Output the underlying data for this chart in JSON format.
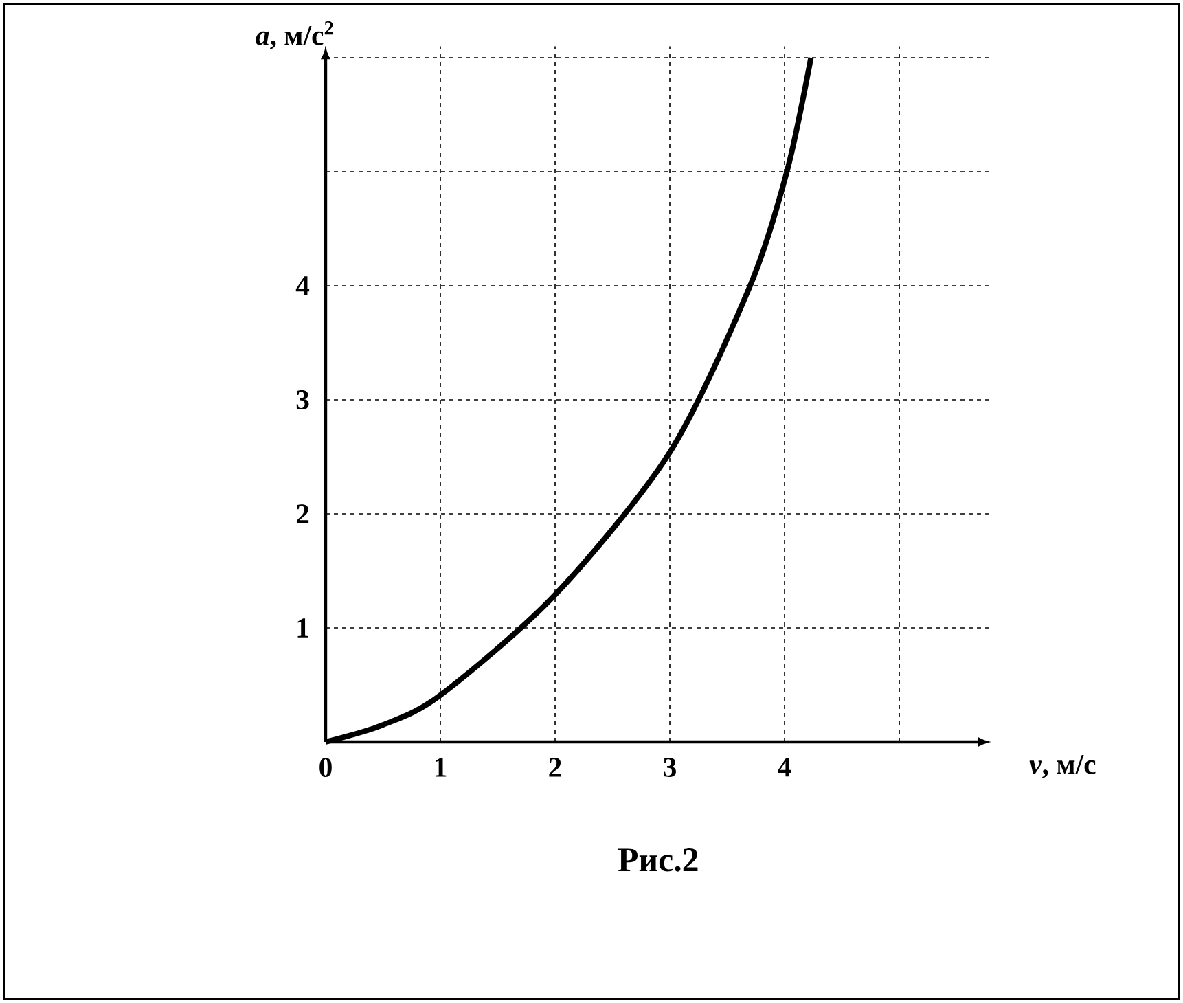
{
  "chart_data": {
    "type": "line",
    "title": "Рис.2",
    "xlabel": "*v*, м/с",
    "ylabel": "*a*, м/с$^{2}$",
    "x": [
      0,
      0.5,
      1,
      2,
      3,
      3.7,
      4.02,
      4.23
    ],
    "values": [
      0,
      0.15,
      0.41,
      1.29,
      2.54,
      4,
      5,
      6
    ],
    "color": "#000000",
    "xlim": [
      0,
      5.8
    ],
    "ylim": [
      0,
      6.1
    ],
    "xticks": [
      0,
      1,
      2,
      3,
      4,
      {
        "value": 5,
        "label": null
      }
    ],
    "yticks": [
      1,
      2,
      3,
      4,
      {
        "value": 5,
        "label": null
      },
      {
        "value": 6,
        "label": null
      }
    ],
    "grid": true,
    "marker": "none",
    "line_style": "solid"
  }
}
